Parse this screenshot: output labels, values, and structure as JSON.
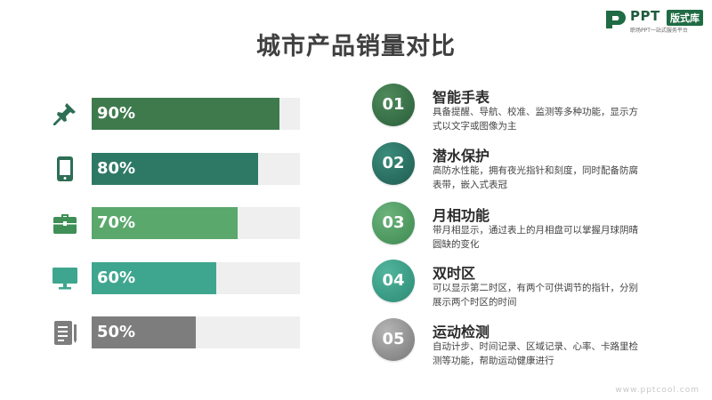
{
  "logo": {
    "brand": "PPT",
    "badge": "版式库",
    "slogan": "职场PPT一站式服务平台"
  },
  "title": "城市产品销量对比",
  "chart_data": {
    "type": "bar",
    "orientation": "horizontal",
    "categories": [
      "pin-icon",
      "tablet-icon",
      "briefcase-icon",
      "monitor-icon",
      "document-icon"
    ],
    "values": [
      90,
      80,
      70,
      60,
      50
    ],
    "value_labels": [
      "90%",
      "80%",
      "70%",
      "60%",
      "50%"
    ],
    "xlim": [
      0,
      100
    ],
    "grid": false,
    "colors": [
      "#3e7a4c",
      "#2e7966",
      "#5aa86c",
      "#3ea68e",
      "#7d7d7d"
    ],
    "icon_colors": [
      "#2e6e55",
      "#2e6e55",
      "#3f8f56",
      "#3ea68e",
      "#7d7d7d"
    ]
  },
  "features": [
    {
      "num": "01",
      "title": "智能手表",
      "desc": "具备提醒、导航、校准、监测等多种功能，显示方式以文字或图像为主",
      "color_a": "#4e8a5b",
      "color_b": "#2a5e3a"
    },
    {
      "num": "02",
      "title": "潜水保护",
      "desc": "高防水性能，拥有夜光指针和刻度，同时配备防腐表带，嵌入式表冠",
      "color_a": "#3b8c7b",
      "color_b": "#1f5c50"
    },
    {
      "num": "03",
      "title": "月相功能",
      "desc": "带月相显示，通过表上的月相盘可以掌握月球阴晴圆缺的变化",
      "color_a": "#6bb27b",
      "color_b": "#3e8a52"
    },
    {
      "num": "04",
      "title": "双时区",
      "desc": "可以显示第二时区，有两个可供调节的指针，分别展示两个时区的时间",
      "color_a": "#52b59e",
      "color_b": "#2b8a74"
    },
    {
      "num": "05",
      "title": "运动检测",
      "desc": "自动计步、时间记录、区域记录、心率、卡路里检测等功能，帮助运动健康进行",
      "color_a": "#b5b5b5",
      "color_b": "#777777"
    }
  ],
  "watermark": "www.pptcool.com"
}
